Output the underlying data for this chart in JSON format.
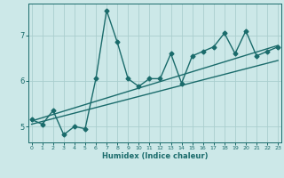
{
  "xlabel": "Humidex (Indice chaleur)",
  "bg_color": "#cce8e8",
  "line_color": "#1a6b6b",
  "grid_color": "#aacece",
  "x_ticks": [
    0,
    1,
    2,
    3,
    4,
    5,
    6,
    7,
    8,
    9,
    10,
    11,
    12,
    13,
    14,
    15,
    16,
    17,
    18,
    19,
    20,
    21,
    22,
    23
  ],
  "y_ticks": [
    5,
    6,
    7
  ],
  "xlim": [
    -0.3,
    23.3
  ],
  "ylim": [
    4.65,
    7.7
  ],
  "zigzag_x": [
    0,
    1,
    2,
    3,
    4,
    5,
    6,
    7,
    8,
    9,
    10,
    11,
    12,
    13,
    14,
    15,
    16,
    17,
    18,
    19,
    20,
    21,
    22,
    23
  ],
  "zigzag_y": [
    5.15,
    5.05,
    5.35,
    4.82,
    5.0,
    4.95,
    6.05,
    7.55,
    6.85,
    6.05,
    5.88,
    6.05,
    6.05,
    6.6,
    5.95,
    6.55,
    6.65,
    6.75,
    7.05,
    6.6,
    7.1,
    6.55,
    6.65,
    6.75
  ],
  "trend1_x": [
    0,
    23
  ],
  "trend1_y": [
    5.12,
    6.78
  ],
  "trend2_x": [
    0,
    23
  ],
  "trend2_y": [
    5.05,
    6.45
  ],
  "marker_size": 2.5,
  "line_width": 1.0
}
